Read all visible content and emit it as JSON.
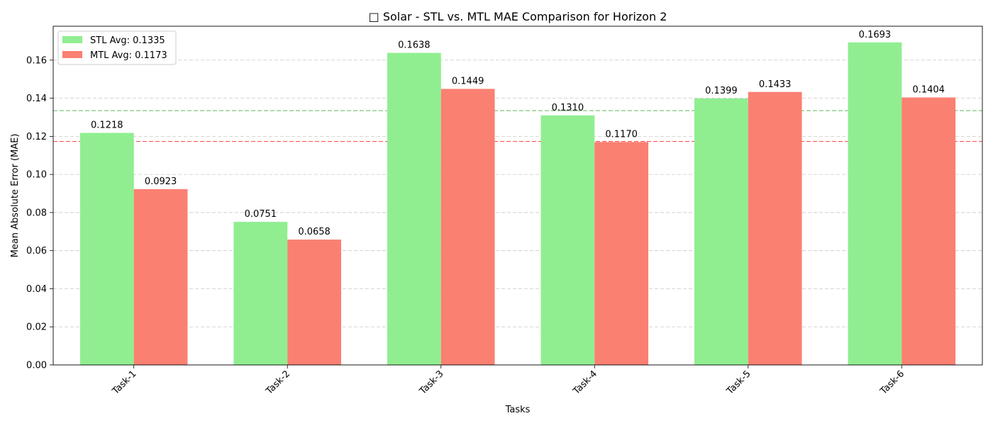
{
  "chart_data": {
    "type": "bar",
    "title": "□ Solar - STL vs. MTL MAE Comparison for Horizon 2",
    "xlabel": "Tasks",
    "ylabel": "Mean Absolute Error (MAE)",
    "categories": [
      "Task-1",
      "Task-2",
      "Task-3",
      "Task-4",
      "Task-5",
      "Task-6"
    ],
    "series": [
      {
        "key": "stl",
        "color": "#90ee90",
        "values": [
          0.1218,
          0.0751,
          0.1638,
          0.131,
          0.1399,
          0.1693
        ],
        "labels": [
          "0.1218",
          "0.0751",
          "0.1638",
          "0.1310",
          "0.1399",
          "0.1693"
        ]
      },
      {
        "key": "mtl",
        "color": "#fa8072",
        "values": [
          0.0923,
          0.0658,
          0.1449,
          0.117,
          0.1433,
          0.1404
        ],
        "labels": [
          "0.0923",
          "0.0658",
          "0.1449",
          "0.1170",
          "0.1433",
          "0.1404"
        ]
      }
    ],
    "reference_lines": [
      {
        "series": "stl",
        "value": 0.1335,
        "color": "#2ca02c",
        "style": "dashed"
      },
      {
        "series": "mtl",
        "value": 0.1173,
        "color": "#ff0000",
        "style": "dashed"
      }
    ],
    "legend": {
      "placement": "top-left",
      "entries": [
        {
          "series": "stl",
          "label": "STL Avg: 0.1335",
          "color": "#90ee90"
        },
        {
          "series": "mtl",
          "label": "MTL Avg: 0.1173",
          "color": "#fa8072"
        }
      ]
    },
    "yticks": [
      "0.00",
      "0.02",
      "0.04",
      "0.06",
      "0.08",
      "0.10",
      "0.12",
      "0.14",
      "0.16"
    ],
    "ytick_values": [
      0,
      0.02,
      0.04,
      0.06,
      0.08,
      0.1,
      0.12,
      0.14,
      0.16
    ],
    "ylim": [
      0,
      0.1778
    ],
    "grid": "y-dashed",
    "xtick_rotation": 45
  }
}
